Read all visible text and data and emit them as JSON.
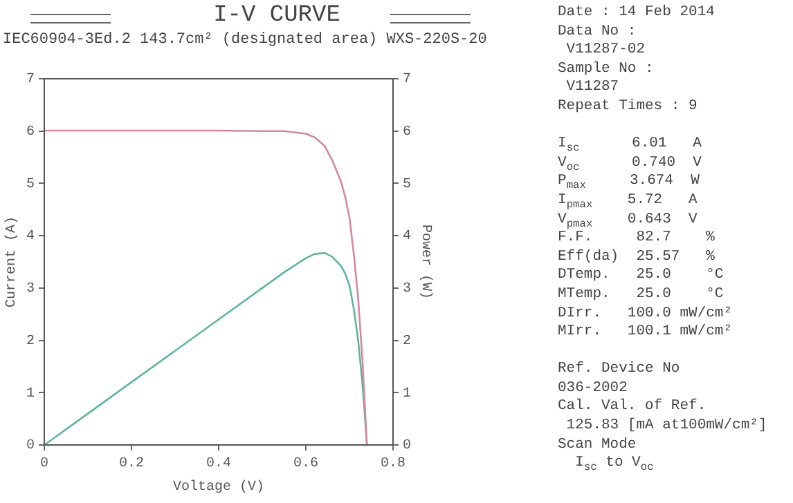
{
  "chart_data": {
    "type": "line",
    "title": "I-V CURVE",
    "subtitle": "IEC60904-3Ed.2 143.7cm² (designated area) WXS-220S-20",
    "xlabel": "Voltage (V)",
    "ylabel": "Current (A)",
    "y2label": "Power (W)",
    "xlim": [
      0,
      0.8
    ],
    "xticks": [
      0,
      0.2,
      0.4,
      0.6,
      0.8
    ],
    "ylim": [
      0,
      7
    ],
    "yticks": [
      0,
      1,
      2,
      3,
      4,
      5,
      6,
      7
    ],
    "y2lim": [
      0,
      7
    ],
    "y2ticks": [
      0,
      1,
      2,
      3,
      4,
      5,
      6,
      7
    ],
    "grid": false,
    "legend": false,
    "marker": "none",
    "line_style": "solid",
    "series": [
      {
        "color": "#d4899b",
        "x": [
          0,
          0.1,
          0.2,
          0.3,
          0.4,
          0.5,
          0.55,
          0.6,
          0.62,
          0.643,
          0.66,
          0.68,
          0.69,
          0.7,
          0.71,
          0.72,
          0.73,
          0.735,
          0.74
        ],
        "values": [
          6.01,
          6.01,
          6.01,
          6.01,
          6.01,
          6.0,
          6.0,
          5.95,
          5.88,
          5.72,
          5.45,
          5.05,
          4.75,
          4.35,
          3.65,
          2.8,
          1.6,
          0.8,
          0
        ]
      },
      {
        "color": "#5fb49e",
        "axis": "y2",
        "x": [
          0,
          0.1,
          0.2,
          0.3,
          0.4,
          0.5,
          0.55,
          0.6,
          0.62,
          0.643,
          0.66,
          0.68,
          0.69,
          0.7,
          0.71,
          0.72,
          0.73,
          0.735,
          0.74
        ],
        "values": [
          0,
          0.6,
          1.2,
          1.8,
          2.4,
          3.0,
          3.3,
          3.57,
          3.65,
          3.67,
          3.6,
          3.43,
          3.28,
          3.05,
          2.6,
          2.0,
          1.15,
          0.6,
          0
        ]
      }
    ],
    "annotations": [
      "Date : 14 Feb 2014\nData No :\n V11287-02\nSample No :\n V11287\nRepeat Times : 9",
      "I$_{sc}$      6.01   A\nV$_{oc}$      0.740  V\nP$_{max}$     3.674  W\nI$_{pmax}$    5.72   A\nV$_{pmax}$    0.643  V\nF.F.     82.7    %\nEff(da)  25.57   %\nDTemp.   25.0    °C\nMTemp.   25.0    °C\nDIrr.   100.0 mW/cm²\nMIrr.   100.1 mW/cm²",
      "Ref. Device No\n036-2002\nCal. Val. of Ref.\n 125.83 [mA at100mW/cm²]\nScan Mode\n  I$_{sc}$ to V$_{oc}$"
    ]
  }
}
